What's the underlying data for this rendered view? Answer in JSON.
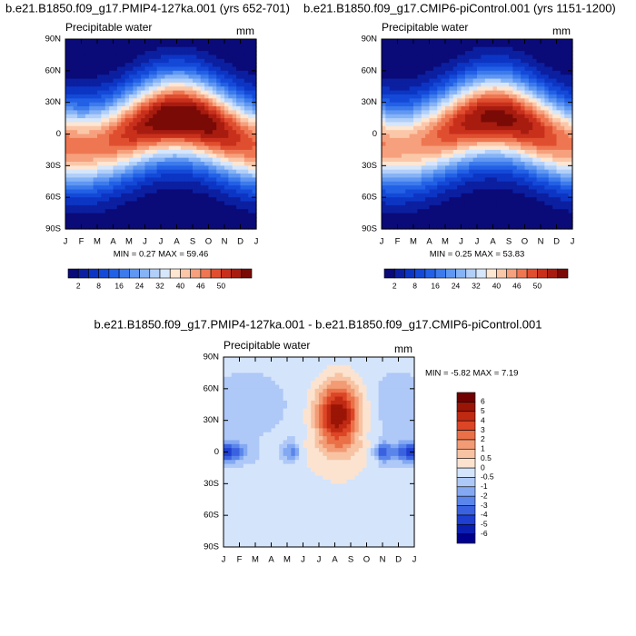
{
  "chart_data": [
    {
      "type": "contour",
      "title": "b.e21.B1850.f09_g17.PMIP4-127ka.001 (yrs 652-701)",
      "left_label": "Precipitable water",
      "right_label": "mm",
      "categories": [
        "J",
        "F",
        "M",
        "A",
        "M",
        "J",
        "J",
        "A",
        "S",
        "O",
        "N",
        "D",
        "J"
      ],
      "ylim": [
        -90,
        90
      ],
      "yticks": [
        {
          "value": 90,
          "label": "90N"
        },
        {
          "value": 60,
          "label": "60N"
        },
        {
          "value": 30,
          "label": "30N"
        },
        0,
        {
          "value": -30,
          "label": "30S"
        },
        {
          "value": -60,
          "label": "60S"
        },
        {
          "value": -90,
          "label": "90S"
        }
      ],
      "stats": "MIN =  0.27 MAX =  59.46",
      "colorbar": {
        "orientation": "horizontal",
        "colors": [
          "#0a0a78",
          "#0b1fa0",
          "#0d35c4",
          "#1449d8",
          "#2260e6",
          "#3d7bec",
          "#5f97f2",
          "#86b3f6",
          "#b1cff9",
          "#d6e6fb",
          "#fde6d2",
          "#fbc7a9",
          "#f6a07d",
          "#ee7752",
          "#e04e30",
          "#c9301c",
          "#a81c10",
          "#7a0a06"
        ],
        "labels": [
          2,
          8,
          16,
          24,
          32,
          40,
          46,
          50
        ]
      }
    },
    {
      "type": "contour",
      "title": "b.e21.B1850.f09_g17.CMIP6-piControl.001 (yrs 1151-1200)",
      "left_label": "Precipitable water",
      "right_label": "mm",
      "categories": [
        "J",
        "F",
        "M",
        "A",
        "M",
        "J",
        "J",
        "A",
        "S",
        "O",
        "N",
        "D",
        "J"
      ],
      "ylim": [
        -90,
        90
      ],
      "yticks": [
        {
          "value": 90,
          "label": "90N"
        },
        {
          "value": 60,
          "label": "60N"
        },
        {
          "value": 30,
          "label": "30N"
        },
        0,
        {
          "value": -30,
          "label": "30S"
        },
        {
          "value": -60,
          "label": "60S"
        },
        {
          "value": -90,
          "label": "90S"
        }
      ],
      "stats": "MIN =  0.25 MAX =  53.83",
      "colorbar": {
        "orientation": "horizontal",
        "colors": [
          "#0a0a78",
          "#0b1fa0",
          "#0d35c4",
          "#1449d8",
          "#2260e6",
          "#3d7bec",
          "#5f97f2",
          "#86b3f6",
          "#b1cff9",
          "#d6e6fb",
          "#fde6d2",
          "#fbc7a9",
          "#f6a07d",
          "#ee7752",
          "#e04e30",
          "#c9301c",
          "#a81c10",
          "#7a0a06"
        ],
        "labels": [
          2,
          8,
          16,
          24,
          32,
          40,
          46,
          50
        ]
      }
    },
    {
      "type": "contour-diff",
      "title": "b.e21.B1850.f09_g17.PMIP4-127ka.001 - b.e21.B1850.f09_g17.CMIP6-piControl.001",
      "left_label": "Precipitable water",
      "right_label": "mm",
      "categories": [
        "J",
        "F",
        "M",
        "A",
        "M",
        "J",
        "J",
        "A",
        "S",
        "O",
        "N",
        "D",
        "J"
      ],
      "ylim": [
        -90,
        90
      ],
      "yticks": [
        {
          "value": 90,
          "label": "90N"
        },
        {
          "value": 60,
          "label": "60N"
        },
        {
          "value": 30,
          "label": "30N"
        },
        0,
        {
          "value": -30,
          "label": "30S"
        },
        {
          "value": -60,
          "label": "60S"
        },
        {
          "value": -90,
          "label": "90S"
        }
      ],
      "stats": "MIN =  -5.82 MAX =   7.19",
      "colorbar": {
        "orientation": "vertical",
        "colors": [
          "#00008f",
          "#0a1fb0",
          "#1f3fd0",
          "#3a62e0",
          "#5a85ea",
          "#84a9f2",
          "#aec8f7",
          "#d4e4fb",
          "#fbe3d0",
          "#f8c3a3",
          "#f29b74",
          "#ea7048",
          "#dc4526",
          "#c02a12",
          "#9a1506",
          "#700000"
        ],
        "labels": [
          -6,
          -5,
          -4,
          -3,
          -2,
          -1,
          -0.5,
          0,
          0.5,
          1,
          2,
          3,
          4,
          5,
          6
        ]
      }
    }
  ]
}
